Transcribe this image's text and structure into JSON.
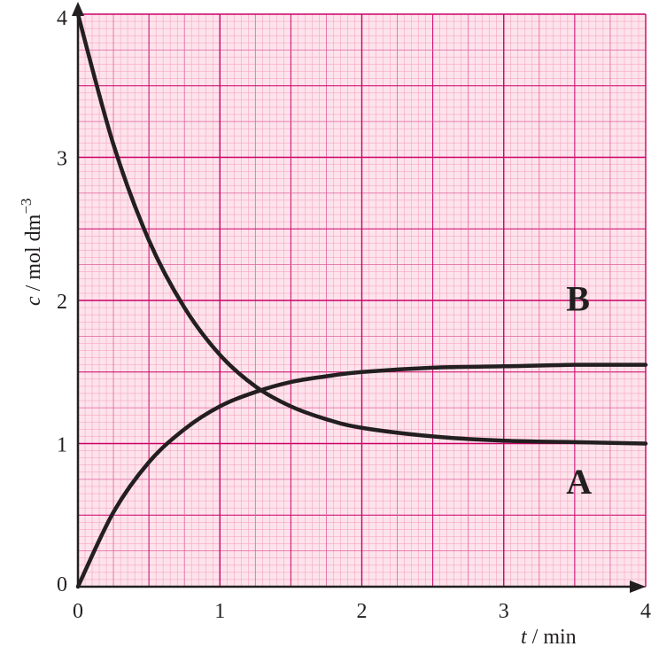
{
  "chart_data": {
    "type": "line",
    "title": "",
    "x_label": {
      "var": "t",
      "unit": " / min"
    },
    "y_label": {
      "var": "c",
      "unit": " / mol dm",
      "exp": "−3"
    },
    "xlim": [
      0,
      4
    ],
    "ylim": [
      0,
      4
    ],
    "x_ticks": [
      "0",
      "1",
      "2",
      "3",
      "4"
    ],
    "y_ticks": [
      "0",
      "1",
      "2",
      "3",
      "4"
    ],
    "grid": true,
    "series": [
      {
        "name": "A",
        "x": [
          0,
          0.25,
          0.5,
          0.75,
          1.0,
          1.25,
          1.5,
          1.75,
          2.0,
          2.5,
          3.0,
          3.5,
          4.0
        ],
        "y": [
          4.0,
          3.09,
          2.42,
          1.95,
          1.62,
          1.4,
          1.26,
          1.17,
          1.11,
          1.05,
          1.02,
          1.01,
          1.0
        ]
      },
      {
        "name": "B",
        "x": [
          0,
          0.25,
          0.5,
          0.75,
          1.0,
          1.25,
          1.5,
          1.75,
          2.0,
          2.5,
          3.0,
          3.5,
          4.0
        ],
        "y": [
          0,
          0.52,
          0.87,
          1.1,
          1.26,
          1.36,
          1.43,
          1.47,
          1.5,
          1.53,
          1.54,
          1.55,
          1.55
        ]
      }
    ],
    "colors": {
      "grid_major": "#cc0066",
      "grid_minor": "#f59ab8",
      "background": "#fde3ec",
      "axis": "#231f20",
      "curve": "#231f20"
    }
  }
}
